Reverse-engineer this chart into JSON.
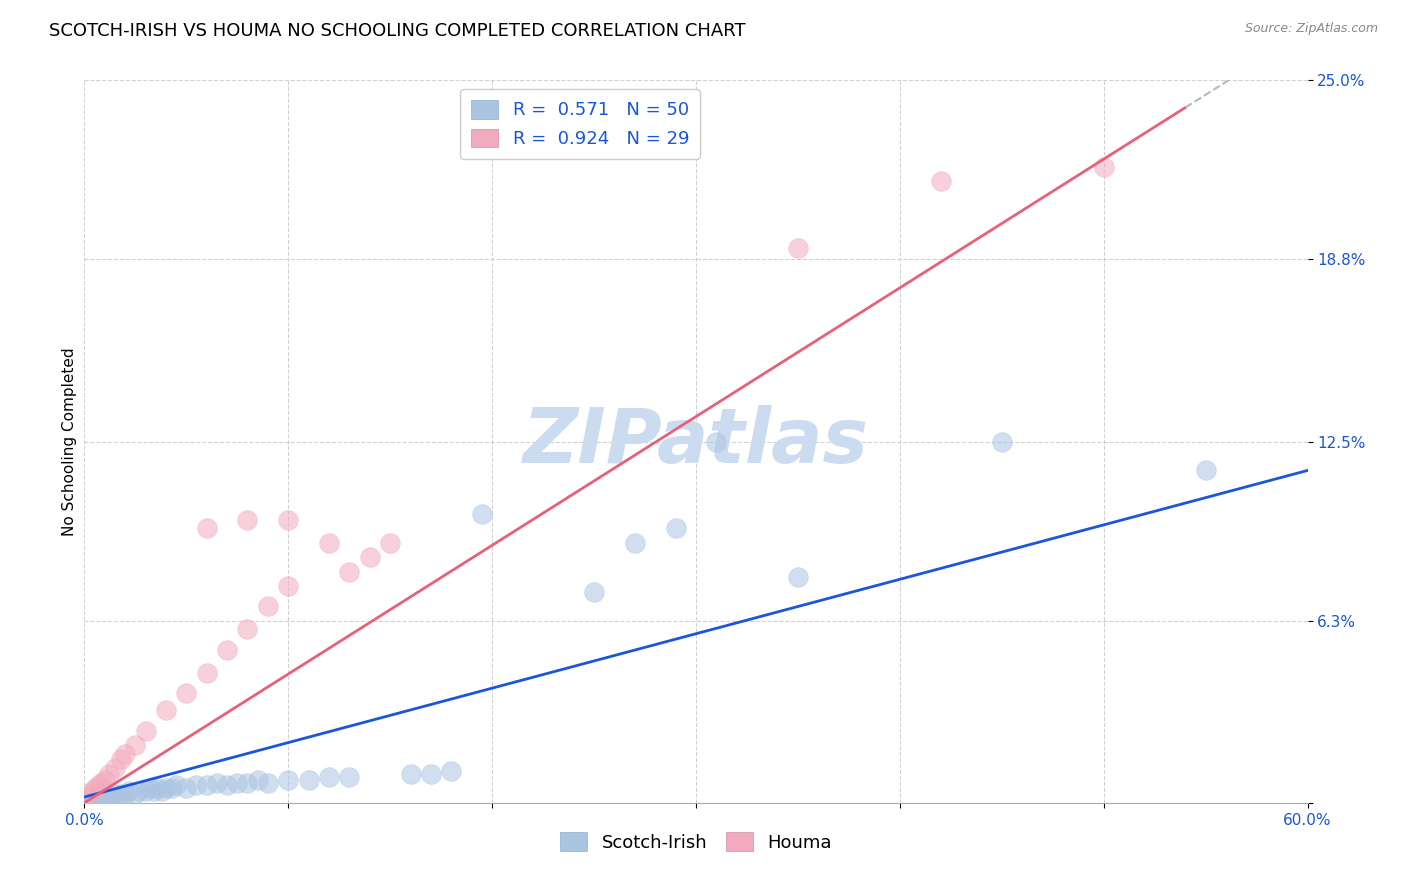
{
  "title": "SCOTCH-IRISH VS HOUMA NO SCHOOLING COMPLETED CORRELATION CHART",
  "source": "Source: ZipAtlas.com",
  "ylabel": "No Schooling Completed",
  "xlim": [
    0.0,
    0.6
  ],
  "ylim": [
    0.0,
    0.25
  ],
  "xtick_positions": [
    0.0,
    0.1,
    0.2,
    0.3,
    0.4,
    0.5,
    0.6
  ],
  "xticklabels": [
    "0.0%",
    "",
    "",
    "",
    "",
    "",
    "60.0%"
  ],
  "ytick_positions": [
    0.0,
    0.063,
    0.125,
    0.188,
    0.25
  ],
  "yticklabels": [
    "",
    "6.3%",
    "12.5%",
    "18.8%",
    "25.0%"
  ],
  "scotch_irish_R": 0.571,
  "scotch_irish_N": 50,
  "houma_R": 0.924,
  "houma_N": 29,
  "scotch_irish_color": "#aac4e2",
  "houma_color": "#f2abbe",
  "scotch_irish_line_color": "#1a56db",
  "houma_line_color": "#e8607a",
  "legend_color": "#1a56db",
  "watermark_text": "ZIPatlas",
  "watermark_color": "#ccdcf0",
  "scotch_irish_points": [
    [
      0.002,
      0.001
    ],
    [
      0.003,
      0.002
    ],
    [
      0.004,
      0.001
    ],
    [
      0.005,
      0.002
    ],
    [
      0.006,
      0.001
    ],
    [
      0.007,
      0.002
    ],
    [
      0.008,
      0.003
    ],
    [
      0.009,
      0.001
    ],
    [
      0.01,
      0.002
    ],
    [
      0.011,
      0.003
    ],
    [
      0.013,
      0.002
    ],
    [
      0.015,
      0.003
    ],
    [
      0.017,
      0.002
    ],
    [
      0.018,
      0.003
    ],
    [
      0.02,
      0.003
    ],
    [
      0.022,
      0.004
    ],
    [
      0.025,
      0.003
    ],
    [
      0.027,
      0.004
    ],
    [
      0.03,
      0.004
    ],
    [
      0.032,
      0.005
    ],
    [
      0.034,
      0.004
    ],
    [
      0.036,
      0.005
    ],
    [
      0.038,
      0.004
    ],
    [
      0.04,
      0.005
    ],
    [
      0.043,
      0.005
    ],
    [
      0.045,
      0.006
    ],
    [
      0.05,
      0.005
    ],
    [
      0.055,
      0.006
    ],
    [
      0.06,
      0.006
    ],
    [
      0.065,
      0.007
    ],
    [
      0.07,
      0.006
    ],
    [
      0.075,
      0.007
    ],
    [
      0.08,
      0.007
    ],
    [
      0.085,
      0.008
    ],
    [
      0.09,
      0.007
    ],
    [
      0.1,
      0.008
    ],
    [
      0.11,
      0.008
    ],
    [
      0.12,
      0.009
    ],
    [
      0.13,
      0.009
    ],
    [
      0.16,
      0.01
    ],
    [
      0.17,
      0.01
    ],
    [
      0.18,
      0.011
    ],
    [
      0.195,
      0.1
    ],
    [
      0.25,
      0.073
    ],
    [
      0.27,
      0.09
    ],
    [
      0.29,
      0.095
    ],
    [
      0.31,
      0.125
    ],
    [
      0.35,
      0.078
    ],
    [
      0.45,
      0.125
    ],
    [
      0.55,
      0.115
    ]
  ],
  "houma_points": [
    [
      0.002,
      0.003
    ],
    [
      0.004,
      0.004
    ],
    [
      0.005,
      0.005
    ],
    [
      0.007,
      0.006
    ],
    [
      0.008,
      0.007
    ],
    [
      0.01,
      0.008
    ],
    [
      0.012,
      0.01
    ],
    [
      0.015,
      0.012
    ],
    [
      0.018,
      0.015
    ],
    [
      0.02,
      0.017
    ],
    [
      0.025,
      0.02
    ],
    [
      0.03,
      0.025
    ],
    [
      0.04,
      0.032
    ],
    [
      0.05,
      0.038
    ],
    [
      0.06,
      0.045
    ],
    [
      0.07,
      0.053
    ],
    [
      0.08,
      0.06
    ],
    [
      0.09,
      0.068
    ],
    [
      0.1,
      0.075
    ],
    [
      0.12,
      0.09
    ],
    [
      0.13,
      0.08
    ],
    [
      0.14,
      0.085
    ],
    [
      0.15,
      0.09
    ],
    [
      0.06,
      0.095
    ],
    [
      0.08,
      0.098
    ],
    [
      0.1,
      0.098
    ],
    [
      0.35,
      0.192
    ],
    [
      0.42,
      0.215
    ],
    [
      0.5,
      0.22
    ]
  ],
  "background_color": "#ffffff",
  "grid_color": "#cccccc",
  "title_fontsize": 13,
  "axis_label_fontsize": 11,
  "tick_fontsize": 11,
  "legend_fontsize": 13,
  "scatter_size": 200,
  "scatter_alpha": 0.55
}
